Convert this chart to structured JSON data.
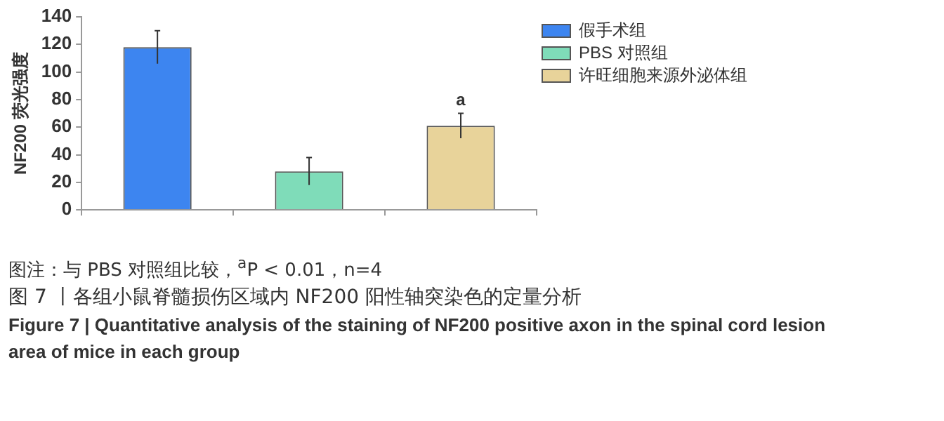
{
  "chart_data": {
    "type": "bar",
    "title": "图 7 丨各组小鼠脊髓损伤区域内 NF200 阳性轴突染色的定量分析",
    "subtitle": "Figure 7  |  Quantitative analysis of the staining of NF200 positive axon in the spinal cord lesion area of mice in each group",
    "ylabel": "NF200 荧光强度",
    "annotations": [
      "图注：与 PBS 对照组比较，$^{a}$P < 0.01，n=4"
    ],
    "categories": [
      null,
      null,
      null
    ],
    "series": [
      {
        "name": "假手术组",
        "color": "#3d85f0",
        "values": [
          118,
          null,
          null
        ],
        "errors": [
          12,
          null,
          null
        ]
      },
      {
        "name": "PBS 对照组",
        "color": "#7fdcb9",
        "values": [
          null,
          28,
          null
        ],
        "errors": [
          null,
          10,
          null
        ]
      },
      {
        "name": "许旺细胞来源外泌体组",
        "color": "#e8d39a",
        "values": [
          null,
          null,
          61
        ],
        "errors": [
          null,
          null,
          9
        ],
        "value_labels": [
          null,
          null,
          "a"
        ]
      }
    ],
    "ylim": [
      0,
      140
    ],
    "yticks": [
      0,
      20,
      40,
      60,
      80,
      100,
      120,
      140
    ],
    "grid": false,
    "legend": "top right"
  }
}
